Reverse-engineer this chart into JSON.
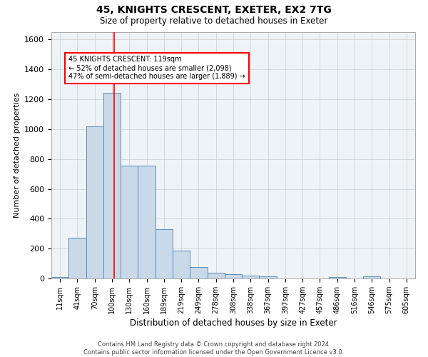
{
  "title1": "45, KNIGHTS CRESCENT, EXETER, EX2 7TG",
  "title2": "Size of property relative to detached houses in Exeter",
  "xlabel": "Distribution of detached houses by size in Exeter",
  "ylabel": "Number of detached properties",
  "bin_labels": [
    "11sqm",
    "41sqm",
    "70sqm",
    "100sqm",
    "130sqm",
    "160sqm",
    "189sqm",
    "219sqm",
    "249sqm",
    "278sqm",
    "308sqm",
    "338sqm",
    "367sqm",
    "397sqm",
    "427sqm",
    "457sqm",
    "486sqm",
    "516sqm",
    "546sqm",
    "575sqm",
    "605sqm"
  ],
  "bar_values": [
    10,
    275,
    1020,
    1245,
    755,
    755,
    330,
    185,
    75,
    40,
    30,
    20,
    15,
    0,
    0,
    0,
    10,
    0,
    15,
    0,
    0
  ],
  "bar_color": "#c9d9e8",
  "bar_edge_color": "#5b8db8",
  "property_sqm": 119,
  "property_bin_index": 3,
  "annotation_line1": "45 KNIGHTS CRESCENT: 119sqm",
  "annotation_line2": "← 52% of detached houses are smaller (2,098)",
  "annotation_line3": "47% of semi-detached houses are larger (1,889) →",
  "ylim": [
    0,
    1650
  ],
  "yticks": [
    0,
    200,
    400,
    600,
    800,
    1000,
    1200,
    1400,
    1600
  ],
  "footer1": "Contains HM Land Registry data © Crown copyright and database right 2024.",
  "footer2": "Contains public sector information licensed under the Open Government Licence v3.0.",
  "grid_color": "#cccccc",
  "bg_color": "#eef3f8",
  "title1_fontsize": 10,
  "title2_fontsize": 8.5,
  "xlabel_fontsize": 8.5,
  "ylabel_fontsize": 8,
  "tick_fontsize": 7,
  "annot_fontsize": 7,
  "footer_fontsize": 6
}
